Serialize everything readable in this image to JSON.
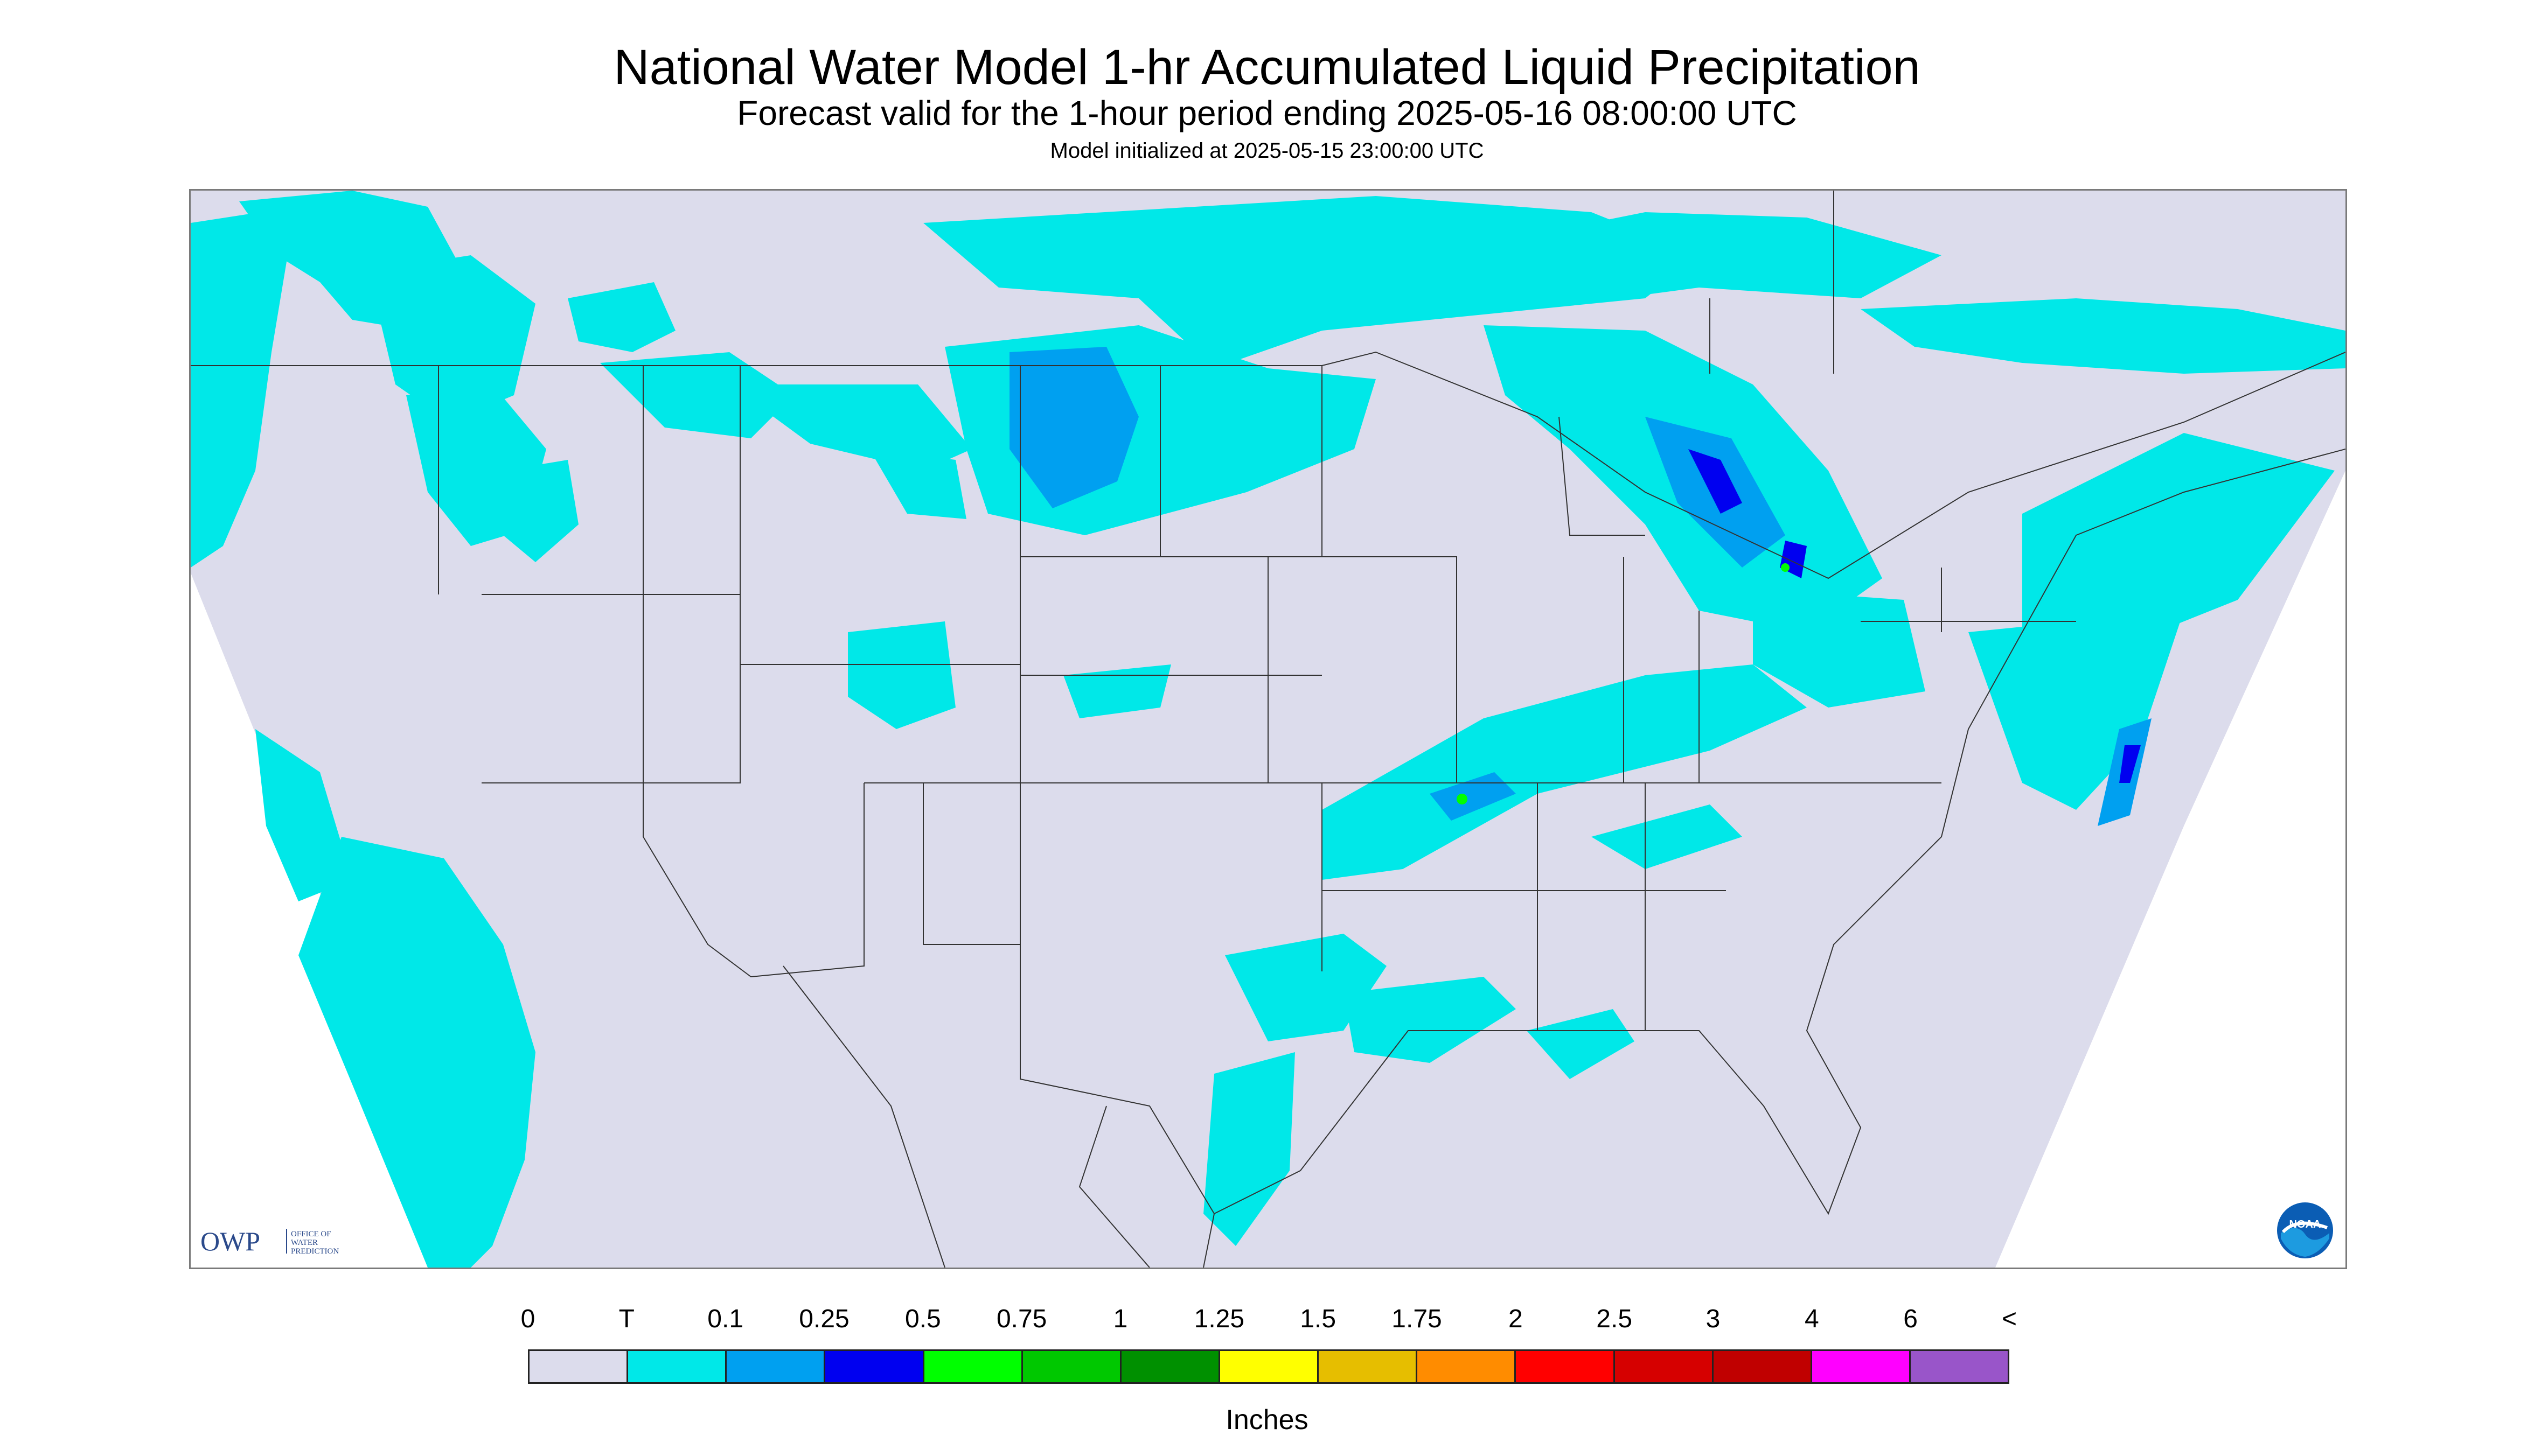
{
  "header": {
    "title": "National Water Model 1-hr Accumulated Liquid Precipitation",
    "subtitle": "Forecast valid for the 1-hour period ending 2025-05-16 08:00:00 UTC",
    "initialized": "Model initialized at 2025-05-15 23:00:00 UTC"
  },
  "map": {
    "background_color": "#dcdcec",
    "outside_color": "#ffffff",
    "boundary_color": "#333333",
    "logos": {
      "owp": {
        "mark": "OWP",
        "text_lines": [
          "OFFICE OF",
          "WATER",
          "PREDICTION"
        ]
      },
      "noaa": {
        "mark": "NOAA"
      }
    }
  },
  "legend": {
    "labels": [
      "0",
      "T",
      "0.1",
      "0.25",
      "0.5",
      "0.75",
      "1",
      "1.25",
      "1.5",
      "1.75",
      "2",
      "2.5",
      "3",
      "4",
      "6",
      "<"
    ],
    "colors": [
      "#dcdcec",
      "#00e8e8",
      "#00a0f0",
      "#0000f0",
      "#00ff00",
      "#00c800",
      "#009000",
      "#ffff00",
      "#e6be00",
      "#ff8c00",
      "#ff0000",
      "#d60000",
      "#c00000",
      "#ff00ff",
      "#9955c9"
    ],
    "unit": "Inches"
  }
}
